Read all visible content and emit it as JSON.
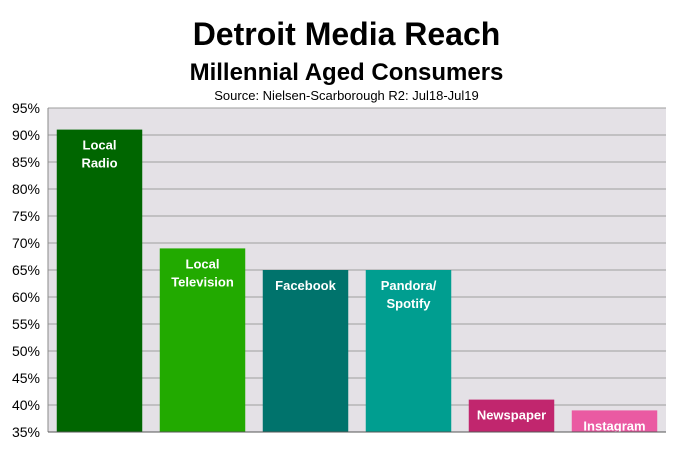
{
  "title": "Detroit Media Reach",
  "subtitle": "Millennial Aged Consumers",
  "source": "Source: Nielsen-Scarborough R2: Jul18-Jul19",
  "chart_data": {
    "type": "bar",
    "title": "Detroit Media Reach",
    "subtitle": "Millennial Aged Consumers",
    "categories": [
      "Local\nRadio",
      "Local\nTelevision",
      "Facebook",
      "Pandora/\nSpotify",
      "Newspaper",
      "Instagram"
    ],
    "values": [
      91,
      69,
      65,
      65,
      41,
      39
    ],
    "colors": [
      "#006600",
      "#22aa00",
      "#00736c",
      "#009e90",
      "#c1266e",
      "#ea5aa2"
    ],
    "ylim": [
      35,
      95
    ],
    "yticks": [
      "35%",
      "40%",
      "45%",
      "50%",
      "55%",
      "60%",
      "65%",
      "70%",
      "75%",
      "80%",
      "85%",
      "90%",
      "95%"
    ],
    "grid": true,
    "plot_background": "#e4e1e6",
    "xlabel": "",
    "ylabel": ""
  }
}
